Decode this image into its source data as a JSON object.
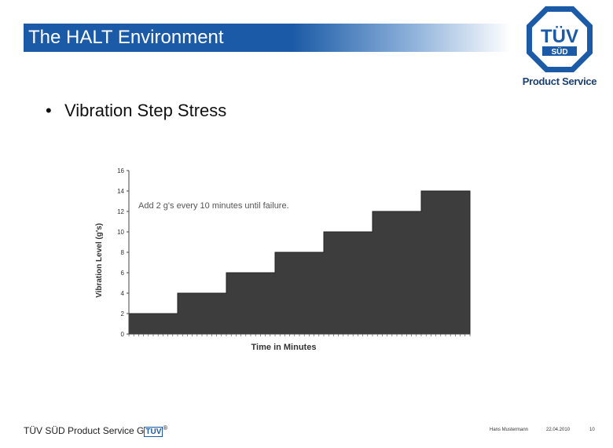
{
  "header": {
    "title": "The HALT Environment",
    "logo_text": "TÜV",
    "logo_subtext": "SÜD",
    "logo_caption": "Product Service"
  },
  "bullet": "Vibration Step Stress",
  "chart_data": {
    "type": "area",
    "title": "",
    "annotation": "Add 2 g's every 10 minutes until failure.",
    "xlabel": "Time in Minutes",
    "ylabel": "Vibration Level (g's)",
    "ylim": [
      0,
      16
    ],
    "yticks": [
      "0",
      "2",
      "4",
      "6",
      "8",
      "10",
      "12",
      "14",
      "16"
    ],
    "xlim": [
      0,
      70
    ],
    "x": [
      0,
      10,
      10,
      20,
      20,
      30,
      30,
      40,
      40,
      50,
      50,
      60,
      60,
      70
    ],
    "y": [
      2,
      2,
      4,
      4,
      6,
      6,
      8,
      8,
      10,
      10,
      12,
      12,
      14,
      14
    ],
    "fill_color": "#3d3d3d"
  },
  "footer": {
    "company": "TÜV SÜD Product Service G",
    "logo_mark": "TÜV",
    "registered": "®",
    "author": "Hans Mustermann",
    "date": "22.04.2010",
    "page": "10"
  },
  "colors": {
    "title_bar": "#1a5aa6",
    "logo_blue": "#1a5aa6",
    "chart_fill": "#3d3d3d"
  }
}
